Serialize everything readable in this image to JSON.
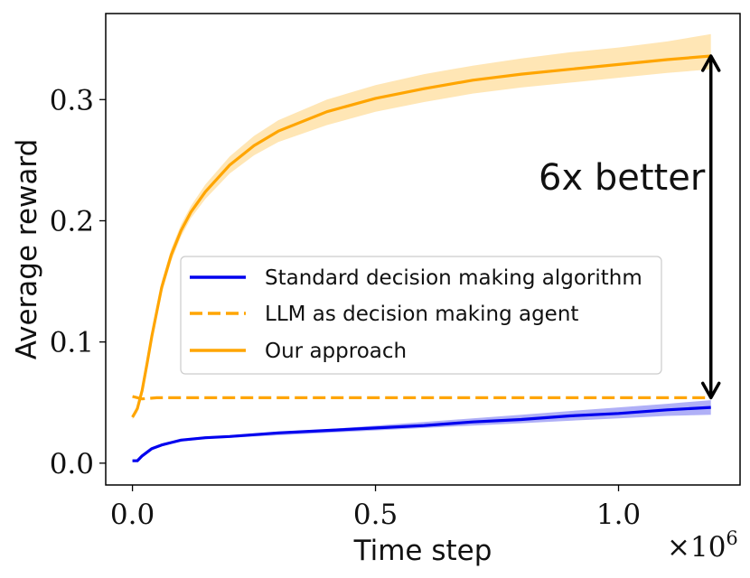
{
  "chart_data": {
    "type": "line",
    "xlabel": "Time step",
    "ylabel": "Average reward",
    "x_multiplier": "×10",
    "x_multiplier_exp": "6",
    "xlim": [
      -0.055,
      1.25
    ],
    "ylim": [
      -0.018,
      0.371
    ],
    "xticks": [
      0.0,
      0.5,
      1.0
    ],
    "xtick_labels": [
      "0.0",
      "0.5",
      "1.0"
    ],
    "yticks": [
      0.0,
      0.1,
      0.2,
      0.3
    ],
    "ytick_labels": [
      "0.0",
      "0.1",
      "0.2",
      "0.3"
    ],
    "grid": false,
    "legend_position": "center-right",
    "legend": [
      {
        "label": "Standard decision making algorithm",
        "style": "solid",
        "color": "#0000ee"
      },
      {
        "label": "LLM as decision making agent",
        "style": "dashed",
        "color": "#ffa500"
      },
      {
        "label": "Our approach",
        "style": "solid",
        "color": "#ffa500"
      }
    ],
    "annotation": {
      "text": "6x better",
      "arrow_x": 1.19,
      "arrow_from": 0.054,
      "arrow_to": 0.336
    },
    "series": [
      {
        "name": "Standard decision making algorithm",
        "color": "#0000ee",
        "band_color": "#5050ee",
        "x": [
          0.0,
          0.01,
          0.02,
          0.04,
          0.06,
          0.08,
          0.1,
          0.15,
          0.2,
          0.3,
          0.4,
          0.5,
          0.6,
          0.7,
          0.8,
          0.9,
          1.0,
          1.1,
          1.19
        ],
        "y": [
          0.002,
          0.002,
          0.006,
          0.012,
          0.015,
          0.017,
          0.019,
          0.021,
          0.022,
          0.025,
          0.027,
          0.029,
          0.031,
          0.034,
          0.036,
          0.039,
          0.041,
          0.044,
          0.046
        ],
        "lower": [
          0.001,
          0.001,
          0.005,
          0.011,
          0.014,
          0.016,
          0.018,
          0.02,
          0.021,
          0.023,
          0.025,
          0.027,
          0.029,
          0.031,
          0.033,
          0.035,
          0.037,
          0.039,
          0.04
        ],
        "upper": [
          0.003,
          0.003,
          0.007,
          0.013,
          0.016,
          0.018,
          0.02,
          0.022,
          0.023,
          0.026,
          0.028,
          0.031,
          0.034,
          0.037,
          0.04,
          0.043,
          0.046,
          0.049,
          0.052
        ]
      },
      {
        "name": "LLM as decision making agent",
        "color": "#ffa500",
        "dashed": true,
        "x": [
          0.0,
          0.02,
          0.05,
          0.1,
          0.3,
          0.5,
          0.8,
          1.0,
          1.19
        ],
        "y": [
          0.055,
          0.053,
          0.054,
          0.054,
          0.054,
          0.054,
          0.054,
          0.054,
          0.054
        ]
      },
      {
        "name": "Our approach",
        "color": "#ffa500",
        "band_color": "#ffc85a",
        "x": [
          0.0,
          0.01,
          0.02,
          0.03,
          0.04,
          0.06,
          0.08,
          0.1,
          0.12,
          0.15,
          0.2,
          0.25,
          0.3,
          0.4,
          0.5,
          0.6,
          0.7,
          0.8,
          0.9,
          1.0,
          1.1,
          1.19
        ],
        "y": [
          0.038,
          0.045,
          0.06,
          0.082,
          0.105,
          0.145,
          0.172,
          0.192,
          0.207,
          0.224,
          0.246,
          0.262,
          0.274,
          0.29,
          0.301,
          0.309,
          0.316,
          0.321,
          0.325,
          0.329,
          0.333,
          0.336
        ],
        "lower": [
          0.036,
          0.042,
          0.056,
          0.078,
          0.1,
          0.14,
          0.167,
          0.187,
          0.202,
          0.218,
          0.239,
          0.254,
          0.265,
          0.279,
          0.29,
          0.298,
          0.305,
          0.31,
          0.314,
          0.318,
          0.322,
          0.325
        ],
        "upper": [
          0.04,
          0.048,
          0.064,
          0.086,
          0.11,
          0.15,
          0.177,
          0.197,
          0.212,
          0.23,
          0.253,
          0.27,
          0.283,
          0.3,
          0.312,
          0.321,
          0.328,
          0.334,
          0.339,
          0.343,
          0.348,
          0.354
        ]
      }
    ]
  }
}
